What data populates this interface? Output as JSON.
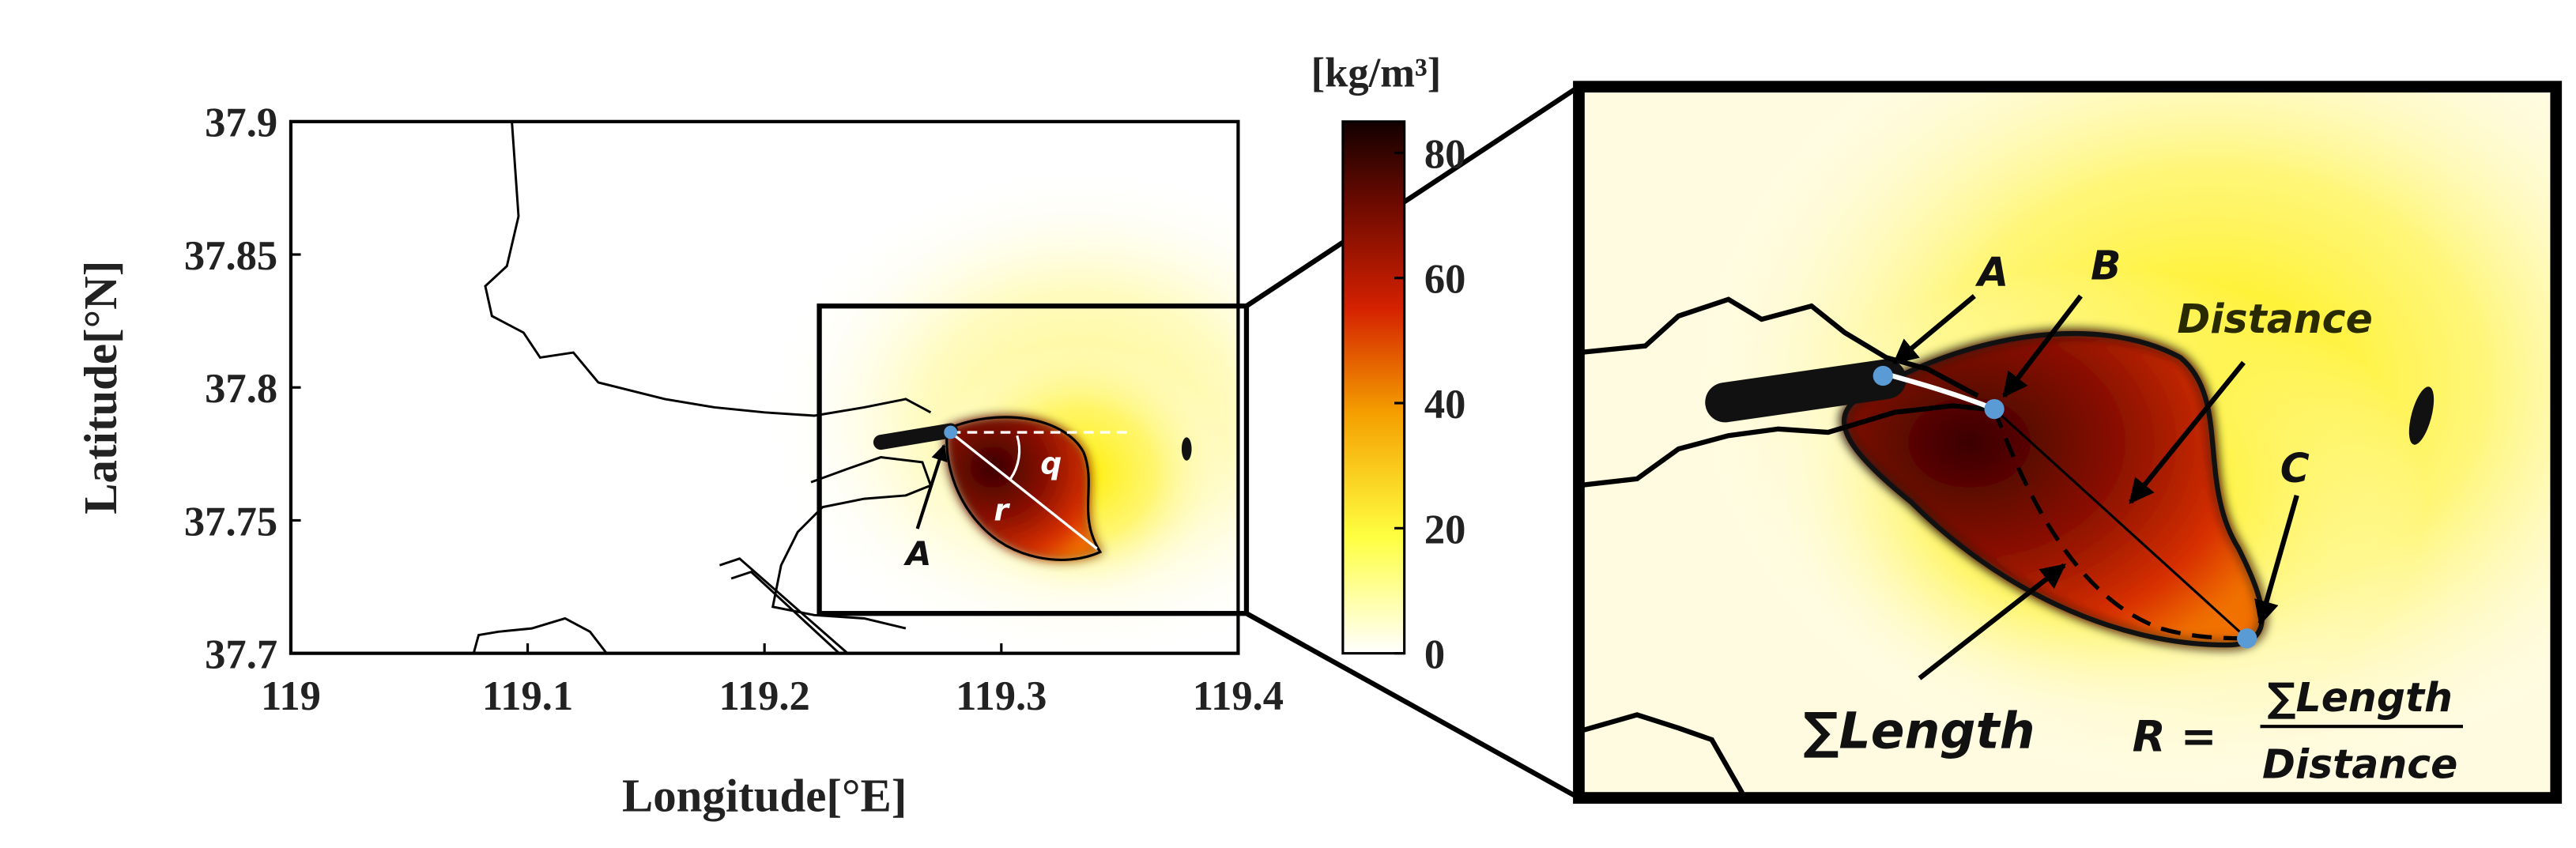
{
  "chart_data": {
    "type": "map",
    "x_label": "Longitude[°E]",
    "y_label": "Latitude[°N]",
    "xlim": [
      119,
      119.4
    ],
    "xticks": [
      119,
      119.1,
      119.2,
      119.3,
      119.4
    ],
    "ylim": [
      37.7,
      37.9
    ],
    "yticks": [
      37.7,
      37.75,
      37.8,
      37.85,
      37.9
    ],
    "colorbar": {
      "label": "[kg/m³]",
      "lim": [
        0,
        85
      ],
      "ticks": [
        0,
        20,
        40,
        60,
        80
      ]
    },
    "annotations": {
      "main": [
        "A",
        "q",
        "r"
      ],
      "inset": [
        "A",
        "B",
        "C",
        "Distance",
        "∑Length"
      ]
    },
    "formula": {
      "lhs": "R =",
      "numerator": "∑Length",
      "denominator": "Distance"
    }
  }
}
